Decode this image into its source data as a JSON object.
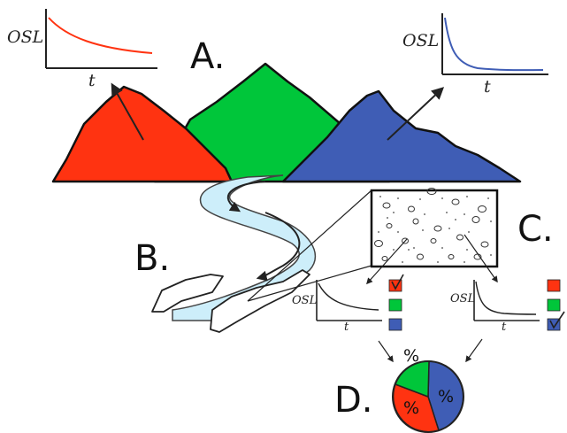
{
  "labels": {
    "a": "A.",
    "b": "B.",
    "c": "C.",
    "d": "D."
  },
  "plots": {
    "y_label": "OSL",
    "x_label": "t"
  },
  "pie": {
    "slice_label": "%"
  },
  "colors": {
    "red": "#ff3311",
    "green": "#00c63a",
    "blue": "#3f5db5",
    "river": "#cdeefa",
    "outline": "#222222"
  }
}
